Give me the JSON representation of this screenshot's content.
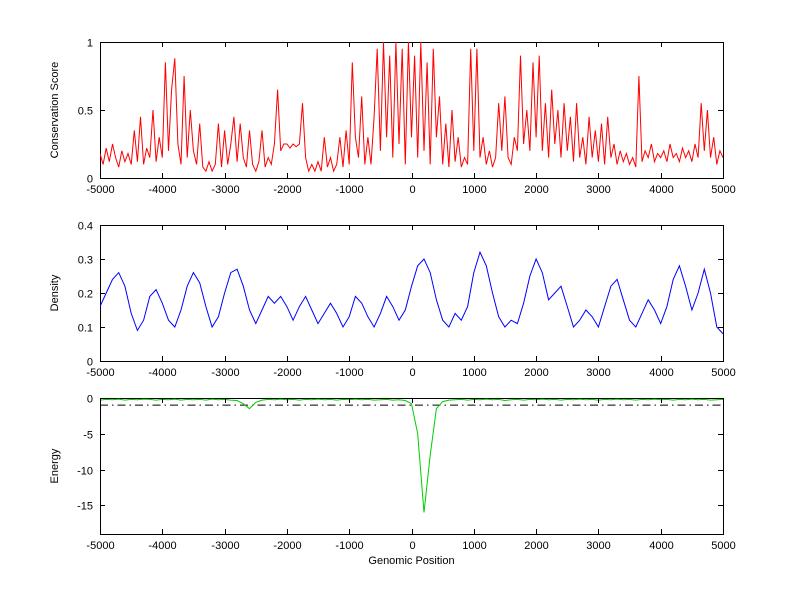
{
  "figure": {
    "background": "#ffffff",
    "axes_color": "#000000"
  },
  "chart_data": [
    {
      "type": "line",
      "title": "",
      "xlabel": "",
      "ylabel": "Conservation Score",
      "series_name": "conservation-score",
      "series_color": "#ff0000",
      "xlim": [
        -5000,
        5000
      ],
      "ylim": [
        0,
        1
      ],
      "xticks": [
        -5000,
        -4000,
        -3000,
        -2000,
        -1000,
        0,
        1000,
        2000,
        3000,
        4000,
        5000
      ],
      "yticks": [
        0,
        0.5,
        1
      ],
      "grid": false,
      "x_start": -5000,
      "x_step": 50,
      "y": [
        0.18,
        0.1,
        0.22,
        0.12,
        0.25,
        0.15,
        0.08,
        0.2,
        0.12,
        0.18,
        0.1,
        0.35,
        0.12,
        0.45,
        0.1,
        0.22,
        0.15,
        0.5,
        0.12,
        0.3,
        0.15,
        0.85,
        0.2,
        0.65,
        0.88,
        0.25,
        0.1,
        0.75,
        0.15,
        0.5,
        0.2,
        0.1,
        0.4,
        0.08,
        0.05,
        0.12,
        0.05,
        0.1,
        0.4,
        0.08,
        0.35,
        0.1,
        0.25,
        0.45,
        0.12,
        0.4,
        0.15,
        0.08,
        0.35,
        0.1,
        0.05,
        0.12,
        0.35,
        0.08,
        0.15,
        0.1,
        0.25,
        0.65,
        0.2,
        0.25,
        0.25,
        0.22,
        0.25,
        0.23,
        0.25,
        0.55,
        0.15,
        0.05,
        0.1,
        0.05,
        0.12,
        0.05,
        0.3,
        0.08,
        0.15,
        0.05,
        0.1,
        0.3,
        0.08,
        0.35,
        0.1,
        0.85,
        0.3,
        0.15,
        0.6,
        0.1,
        0.3,
        0.1,
        0.45,
        0.95,
        0.2,
        1.0,
        0.3,
        0.9,
        0.15,
        1.0,
        0.25,
        0.95,
        0.1,
        1.0,
        0.3,
        0.9,
        0.15,
        1.0,
        0.2,
        0.85,
        0.1,
        0.95,
        0.3,
        0.6,
        0.1,
        0.4,
        0.08,
        0.5,
        0.12,
        0.3,
        0.08,
        0.15,
        0.1,
        0.95,
        0.2,
        0.95,
        0.15,
        0.3,
        0.1,
        0.2,
        0.08,
        0.15,
        0.55,
        0.2,
        0.6,
        0.15,
        0.1,
        0.3,
        0.2,
        0.9,
        0.25,
        0.5,
        0.2,
        0.85,
        0.3,
        0.9,
        0.2,
        0.55,
        0.15,
        0.65,
        0.25,
        0.5,
        0.15,
        0.55,
        0.2,
        0.45,
        0.12,
        0.55,
        0.15,
        0.3,
        0.1,
        0.45,
        0.15,
        0.35,
        0.12,
        0.4,
        0.1,
        0.45,
        0.15,
        0.25,
        0.1,
        0.2,
        0.12,
        0.18,
        0.1,
        0.15,
        0.08,
        0.75,
        0.12,
        0.2,
        0.15,
        0.25,
        0.12,
        0.18,
        0.15,
        0.2,
        0.12,
        0.25,
        0.15,
        0.18,
        0.12,
        0.22,
        0.15,
        0.2,
        0.12,
        0.25,
        0.15,
        0.55,
        0.2,
        0.5,
        0.15,
        0.3,
        0.1,
        0.2,
        0.15
      ]
    },
    {
      "type": "line",
      "title": "",
      "xlabel": "",
      "ylabel": "Density",
      "series_name": "density",
      "series_color": "#0000ff",
      "xlim": [
        -5000,
        5000
      ],
      "ylim": [
        0,
        0.4
      ],
      "xticks": [
        -5000,
        -4000,
        -3000,
        -2000,
        -1000,
        0,
        1000,
        2000,
        3000,
        4000,
        5000
      ],
      "yticks": [
        0,
        0.1,
        0.2,
        0.3,
        0.4
      ],
      "grid": false,
      "x_start": -5000,
      "x_step": 100,
      "y": [
        0.16,
        0.2,
        0.24,
        0.26,
        0.22,
        0.14,
        0.09,
        0.12,
        0.19,
        0.21,
        0.17,
        0.12,
        0.1,
        0.15,
        0.22,
        0.26,
        0.23,
        0.16,
        0.1,
        0.13,
        0.2,
        0.26,
        0.27,
        0.22,
        0.15,
        0.11,
        0.15,
        0.19,
        0.17,
        0.19,
        0.16,
        0.12,
        0.16,
        0.19,
        0.15,
        0.11,
        0.14,
        0.17,
        0.14,
        0.1,
        0.13,
        0.19,
        0.17,
        0.13,
        0.1,
        0.14,
        0.19,
        0.16,
        0.12,
        0.15,
        0.22,
        0.28,
        0.3,
        0.26,
        0.18,
        0.12,
        0.1,
        0.14,
        0.12,
        0.16,
        0.26,
        0.32,
        0.28,
        0.2,
        0.13,
        0.1,
        0.12,
        0.11,
        0.17,
        0.25,
        0.3,
        0.26,
        0.18,
        0.2,
        0.22,
        0.16,
        0.1,
        0.12,
        0.15,
        0.13,
        0.1,
        0.16,
        0.22,
        0.24,
        0.18,
        0.12,
        0.1,
        0.14,
        0.18,
        0.15,
        0.11,
        0.16,
        0.24,
        0.28,
        0.22,
        0.15,
        0.2,
        0.27,
        0.2,
        0.1,
        0.08
      ]
    },
    {
      "type": "line",
      "title": "",
      "xlabel": "Genomic Position",
      "ylabel": "Energy",
      "series_name": "energy",
      "series_color": "#00cc00",
      "xlim": [
        -5000,
        5000
      ],
      "ylim": [
        -19,
        0
      ],
      "xticks": [
        -5000,
        -4000,
        -3000,
        -2000,
        -1000,
        0,
        1000,
        2000,
        3000,
        4000,
        5000
      ],
      "yticks": [
        0,
        -5,
        -10,
        -15
      ],
      "grid": false,
      "x_start": -5000,
      "x_step": 100,
      "threshold": {
        "y": -1,
        "color": "#000000",
        "style": "dash-dot"
      },
      "y": [
        -0.3,
        -0.2,
        -0.25,
        -0.15,
        -0.3,
        -0.2,
        -0.25,
        -0.15,
        -0.2,
        -0.3,
        -0.2,
        -0.25,
        -0.15,
        -0.3,
        -0.2,
        -0.25,
        -0.2,
        -0.3,
        -0.15,
        -0.25,
        -0.2,
        -0.3,
        -0.35,
        -0.8,
        -1.5,
        -0.6,
        -0.3,
        -0.2,
        -0.25,
        -0.15,
        -0.25,
        -0.2,
        -0.3,
        -0.2,
        -0.25,
        -0.15,
        -0.25,
        -0.2,
        -0.3,
        -0.2,
        -0.25,
        -0.15,
        -0.25,
        -0.2,
        -0.3,
        -0.25,
        -0.2,
        -0.3,
        -0.25,
        -0.35,
        -0.8,
        -5,
        -16,
        -8,
        -1.5,
        -0.5,
        -0.3,
        -0.25,
        -0.2,
        -0.3,
        -0.2,
        -0.25,
        -0.15,
        -0.25,
        -0.2,
        -0.35,
        -0.25,
        -0.2,
        -0.3,
        -0.2,
        -0.25,
        -0.15,
        -0.25,
        -0.2,
        -0.3,
        -0.2,
        -0.25,
        -0.15,
        -0.25,
        -0.2,
        -0.3,
        -0.2,
        -0.25,
        -0.15,
        -0.25,
        -0.2,
        -0.3,
        -0.2,
        -0.25,
        -0.15,
        -0.25,
        -0.2,
        -0.3,
        -0.2,
        -0.25,
        -0.15,
        -0.25,
        -0.2,
        -0.3,
        -0.25,
        -0.2
      ]
    }
  ]
}
